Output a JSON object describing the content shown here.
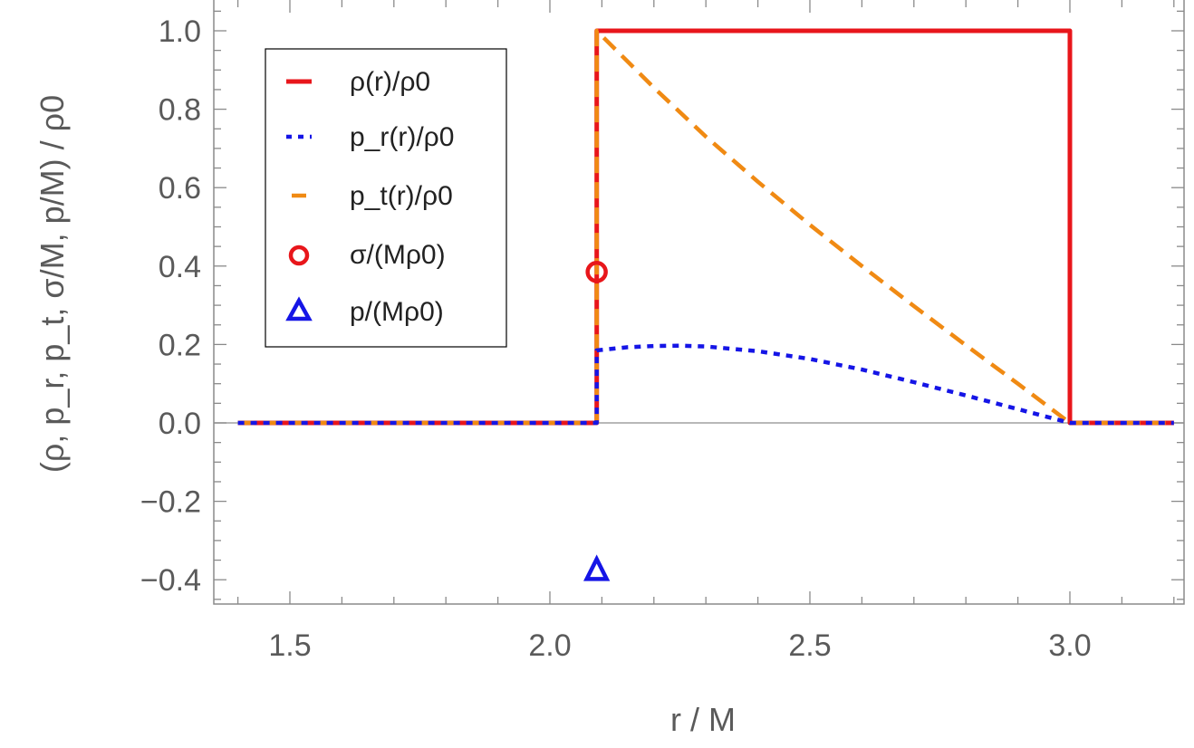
{
  "chart_data": {
    "type": "line",
    "title": "",
    "xlabel": "r / M",
    "ylabel": "(ρ, p_r, p_t, σ/M, p/M) / ρ0",
    "xlim": [
      1.38,
      3.22
    ],
    "ylim": [
      -0.46,
      1.07
    ],
    "x_ticks": [
      1.5,
      2.0,
      2.5,
      3.0
    ],
    "x_tick_labels": [
      "1.5",
      "2.0",
      "2.5",
      "3.0"
    ],
    "y_ticks": [
      -0.4,
      -0.2,
      0.0,
      0.2,
      0.4,
      0.6,
      0.8,
      1.0
    ],
    "y_tick_labels": [
      "−0.4",
      "−0.2",
      "0.0",
      "0.2",
      "0.4",
      "0.6",
      "0.8",
      "1.0"
    ],
    "shell_inner_radius": 2.09,
    "shell_outer_radius": 3.0,
    "series": [
      {
        "name": "rho",
        "legend": "ρ(r)/ρ0",
        "color": "#e8161b",
        "style": "solid",
        "x": [
          1.4,
          2.09,
          2.09,
          3.0,
          3.0,
          3.2
        ],
        "y": [
          0,
          0,
          1.0,
          1.0,
          0,
          0
        ]
      },
      {
        "name": "p_r",
        "legend": "p_r(r)/ρ0",
        "color": "#1515e6",
        "style": "dotted",
        "x": [
          1.4,
          2.09,
          2.09,
          2.15,
          2.2,
          2.25,
          2.3,
          2.4,
          2.5,
          2.6,
          2.7,
          2.8,
          2.9,
          3.0,
          3.0,
          3.2
        ],
        "y": [
          0,
          0,
          0.185,
          0.193,
          0.196,
          0.197,
          0.195,
          0.183,
          0.163,
          0.136,
          0.104,
          0.07,
          0.035,
          0,
          0,
          0
        ]
      },
      {
        "name": "p_t",
        "legend": "p_t(r)/ρ0",
        "color": "#f08a13",
        "style": "dashed",
        "x": [
          1.4,
          2.09,
          2.09,
          2.2,
          2.3,
          2.4,
          2.5,
          2.6,
          2.7,
          2.8,
          2.9,
          3.0,
          3.0,
          3.2
        ],
        "y": [
          0,
          0,
          1.0,
          0.855,
          0.73,
          0.615,
          0.505,
          0.4,
          0.298,
          0.198,
          0.1,
          0,
          0,
          0
        ]
      },
      {
        "name": "sigma",
        "legend": "σ/(Mρ0)",
        "color": "#e8161b",
        "style": "marker-circle",
        "x": [
          2.09
        ],
        "y": [
          0.385
        ]
      },
      {
        "name": "p_surface",
        "legend": "p/(Mρ0)",
        "color": "#1515e6",
        "style": "marker-triangle",
        "x": [
          2.09
        ],
        "y": [
          -0.375
        ]
      }
    ],
    "boundary_lines": {
      "color": "#000000",
      "x": [
        2.09,
        3.0
      ],
      "y_range": [
        0,
        1.0
      ]
    },
    "legend_position": "top-left"
  }
}
